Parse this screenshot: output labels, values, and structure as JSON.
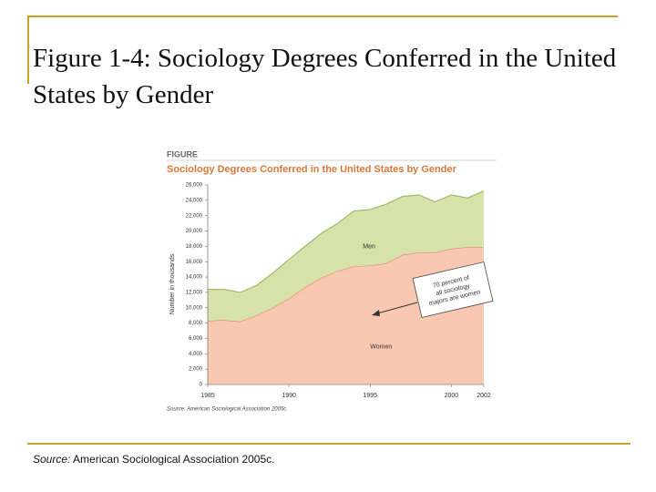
{
  "slide": {
    "title": "Figure 1-4: Sociology Degrees Conferred in the United States by Gender",
    "source": {
      "label": "Source:",
      "text": "American Sociological Association 2005c."
    }
  },
  "chart_data": {
    "type": "stacked-area",
    "figure_label": "FIGURE",
    "title": "Sociology Degrees Conferred in the United States by Gender",
    "y_label": "Number in thousands",
    "source": "Source: American Sociological Association 2005c.",
    "annotation": "70 percent of all sociology majors are women",
    "x": [
      1985,
      1986,
      1987,
      1988,
      1989,
      1990,
      1991,
      1992,
      1993,
      1994,
      1995,
      1996,
      1997,
      1998,
      1999,
      2000,
      2001,
      2002
    ],
    "series": [
      {
        "name": "Women",
        "color": "#f8c8b2",
        "edge": "#e8826a",
        "values": [
          8300,
          8400,
          8200,
          9000,
          10000,
          11200,
          12700,
          13900,
          14800,
          15400,
          15500,
          15800,
          16900,
          17200,
          17200,
          17700,
          17900,
          17900
        ]
      },
      {
        "name": "Men",
        "color": "#d6e2a9",
        "edge": "#9fb86a",
        "values": [
          4100,
          4000,
          3800,
          3900,
          4500,
          5100,
          5300,
          5800,
          6200,
          7200,
          7300,
          7700,
          7600,
          7500,
          6600,
          7000,
          6400,
          7300
        ]
      }
    ],
    "xlim": [
      1985,
      2002
    ],
    "xticks": [
      1985,
      1990,
      1995,
      2000,
      2002
    ],
    "ylim": [
      0,
      26000
    ],
    "yticks": [
      0,
      {
        "value": 2000,
        "label": "2,000"
      },
      {
        "value": 4000,
        "label": "4,000"
      },
      {
        "value": 6000,
        "label": "6,000"
      },
      {
        "value": 8000,
        "label": "8,000"
      },
      {
        "value": 10000,
        "label": "10,000"
      },
      {
        "value": 12000,
        "label": "12,000"
      },
      {
        "value": 14000,
        "label": "14,000"
      },
      {
        "value": 16000,
        "label": "16,000"
      },
      {
        "value": 18000,
        "label": "18,000"
      },
      {
        "value": 20000,
        "label": "20,000"
      },
      {
        "value": 22000,
        "label": "22,000"
      },
      {
        "value": 24000,
        "label": "24,000"
      },
      {
        "value": 26000,
        "label": "26,000"
      }
    ],
    "grid": false
  }
}
